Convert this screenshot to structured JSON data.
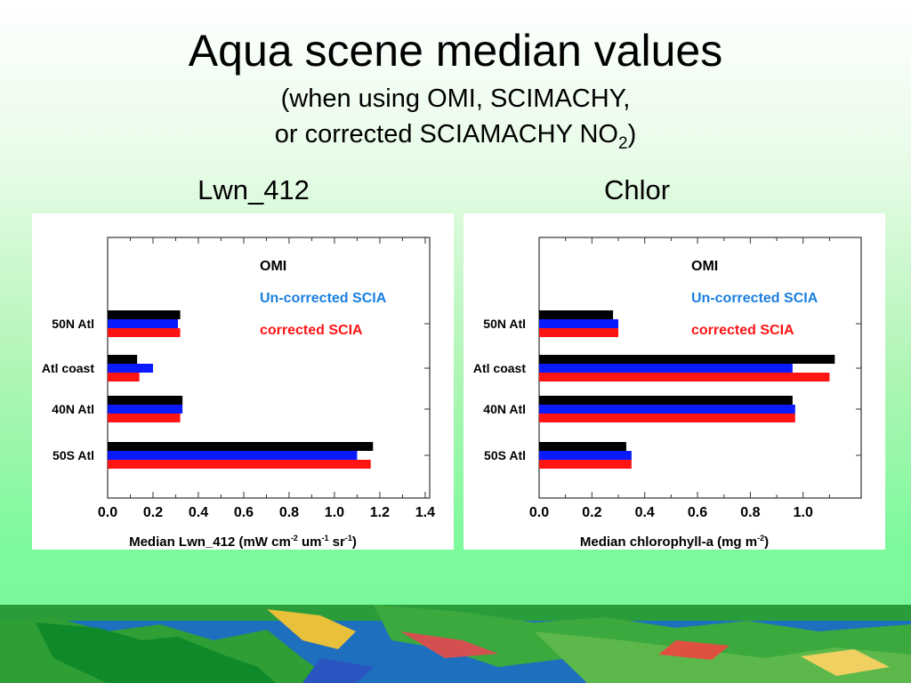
{
  "title": "Aqua scene median values",
  "subtitle_line1": "(when using OMI, SCIMACHY,",
  "subtitle_line2_prefix": "or corrected SCIAMACHY NO",
  "subtitle_line2_sub": "2",
  "subtitle_line2_suffix": ")",
  "colors": {
    "omi": "#000000",
    "uncorrected": "#0a1aff",
    "corrected": "#ff1414",
    "legend_uncorrected": "#1a7fe0"
  },
  "chart_data": [
    {
      "type": "bar",
      "orientation": "horizontal",
      "panel_title": "Lwn_412",
      "categories": [
        "50N Atl",
        "Atl coast",
        "40N Atl",
        "50S Atl"
      ],
      "series": [
        {
          "name": "OMI",
          "values": [
            0.32,
            0.13,
            0.33,
            1.17
          ]
        },
        {
          "name": "Un-corrected SCIA",
          "values": [
            0.31,
            0.2,
            0.33,
            1.1
          ]
        },
        {
          "name": "corrected SCIA",
          "values": [
            0.32,
            0.14,
            0.32,
            1.16
          ]
        }
      ],
      "xlim": [
        0.0,
        1.42
      ],
      "xticks": [
        "0.0",
        "0.2",
        "0.4",
        "0.6",
        "0.8",
        "1.0",
        "1.2",
        "1.4"
      ],
      "xlabel_text": "Median Lwn_412 (mW cm",
      "xlabel_sup1": "-2",
      "xlabel_mid1": " um",
      "xlabel_sup2": "-1",
      "xlabel_mid2": " sr",
      "xlabel_sup3": "-1",
      "xlabel_end": ")",
      "legend_position": "top-right"
    },
    {
      "type": "bar",
      "orientation": "horizontal",
      "panel_title": "Chlor",
      "categories": [
        "50N Atl",
        "Atl coast",
        "40N Atl",
        "50S Atl"
      ],
      "series": [
        {
          "name": "OMI",
          "values": [
            0.28,
            1.12,
            0.96,
            0.33
          ]
        },
        {
          "name": "Un-corrected SCIA",
          "values": [
            0.3,
            0.96,
            0.97,
            0.35
          ]
        },
        {
          "name": "corrected SCIA",
          "values": [
            0.3,
            1.1,
            0.97,
            0.35
          ]
        }
      ],
      "xlim": [
        0.0,
        1.22
      ],
      "xticks": [
        "0.0",
        "0.2",
        "0.4",
        "0.6",
        "0.8",
        "1.0"
      ],
      "xlabel_text": "Median chlorophyll-a (mg m",
      "xlabel_sup1": "-2",
      "xlabel_end": ")",
      "legend_position": "top-right"
    }
  ]
}
